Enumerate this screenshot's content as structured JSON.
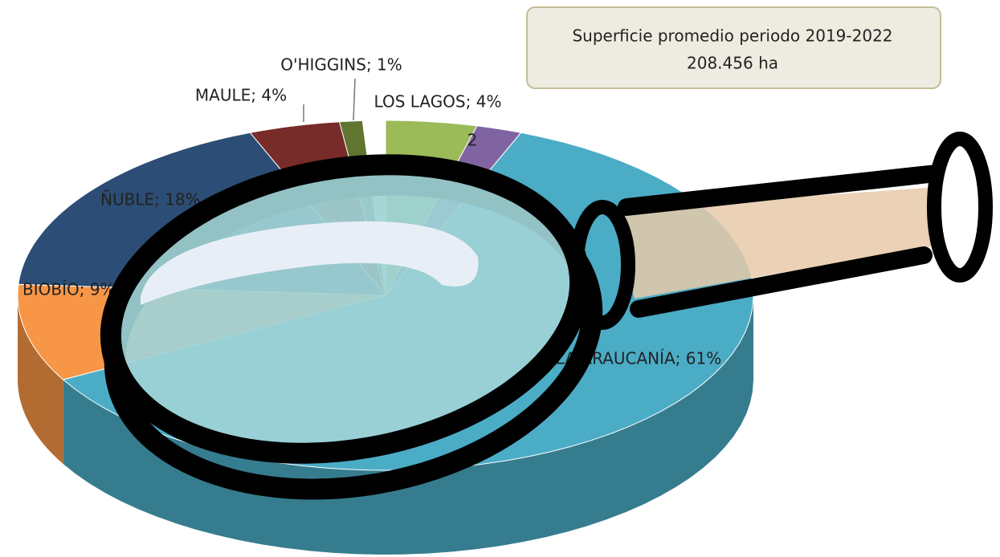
{
  "chart_data": {
    "type": "pie3d",
    "categories": [
      "LOS LAGOS",
      null,
      "LA ARAUCANÍA",
      "BIOBÍO",
      "ÑUBLE",
      "MAULE",
      "O'HIGGINS"
    ],
    "values": [
      4,
      2,
      61,
      9,
      18,
      4,
      1
    ],
    "value_labels": [
      "LOS LAGOS; 4%",
      "2",
      "LA ARAUCANÍA; 61%",
      "BIOBÍO; 9%",
      "ÑUBLE; 18%",
      "MAULE; 4%",
      "O'HIGGINS; 1%"
    ],
    "colors": [
      "#9bbb59",
      "#8064a2",
      "#4bacc6",
      "#f79646",
      "#2c4d75",
      "#772c2a",
      "#5f7530"
    ],
    "annotation": [
      "Superficie promedio periodo 2019-2022",
      "208.456 ha"
    ]
  }
}
